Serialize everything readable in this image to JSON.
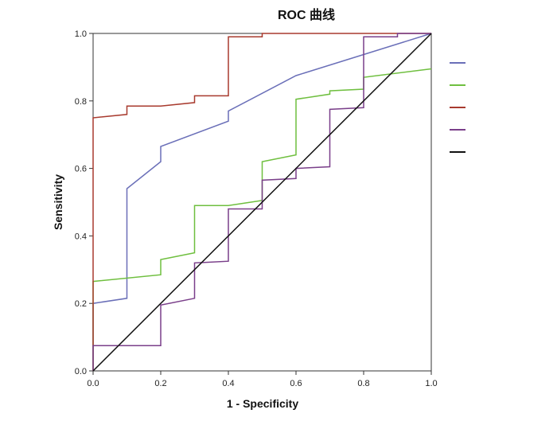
{
  "chart_data": {
    "type": "line",
    "title": "ROC 曲线",
    "xlabel": "1 - Specificity",
    "ylabel": "Sensitivity",
    "xlim": [
      0,
      1
    ],
    "ylim": [
      0,
      1
    ],
    "xticks": [
      "0.0",
      "0.2",
      "0.4",
      "0.6",
      "0.8",
      "1.0"
    ],
    "yticks": [
      "0.0",
      "0.2",
      "0.4",
      "0.6",
      "0.8",
      "1.0"
    ],
    "grid": false,
    "legend_position": "right",
    "series": [
      {
        "color": "#6a6fb8",
        "x": [
          0,
          0,
          0.1,
          0.1,
          0.2,
          0.2,
          0.4,
          0.4,
          0.6,
          1.0
        ],
        "y": [
          0,
          0.2,
          0.215,
          0.54,
          0.62,
          0.665,
          0.74,
          0.77,
          0.875,
          1.0
        ]
      },
      {
        "color": "#6fbf3f",
        "x": [
          0,
          0,
          0.2,
          0.2,
          0.3,
          0.3,
          0.4,
          0.5,
          0.5,
          0.6,
          0.6,
          0.7,
          0.7,
          0.8,
          0.8,
          1.0
        ],
        "y": [
          0,
          0.265,
          0.285,
          0.33,
          0.35,
          0.49,
          0.49,
          0.505,
          0.62,
          0.64,
          0.805,
          0.82,
          0.83,
          0.835,
          0.87,
          0.895
        ]
      },
      {
        "color": "#a83a2e",
        "x": [
          0,
          0,
          0.1,
          0.1,
          0.2,
          0.3,
          0.3,
          0.4,
          0.4,
          0.5,
          0.5,
          1.0
        ],
        "y": [
          0,
          0.75,
          0.76,
          0.785,
          0.785,
          0.795,
          0.815,
          0.815,
          0.99,
          0.99,
          1.0,
          1.0
        ]
      },
      {
        "color": "#7a3f8a",
        "x": [
          0,
          0,
          0.2,
          0.2,
          0.3,
          0.3,
          0.4,
          0.4,
          0.5,
          0.5,
          0.6,
          0.6,
          0.7,
          0.7,
          0.8,
          0.8,
          0.9,
          0.9,
          1.0
        ],
        "y": [
          0,
          0.075,
          0.075,
          0.195,
          0.215,
          0.32,
          0.325,
          0.48,
          0.48,
          0.565,
          0.57,
          0.6,
          0.605,
          0.775,
          0.78,
          0.99,
          0.99,
          1.0,
          1.0
        ]
      },
      {
        "color": "#111111",
        "x": [
          0,
          1
        ],
        "y": [
          0,
          1
        ]
      }
    ]
  }
}
